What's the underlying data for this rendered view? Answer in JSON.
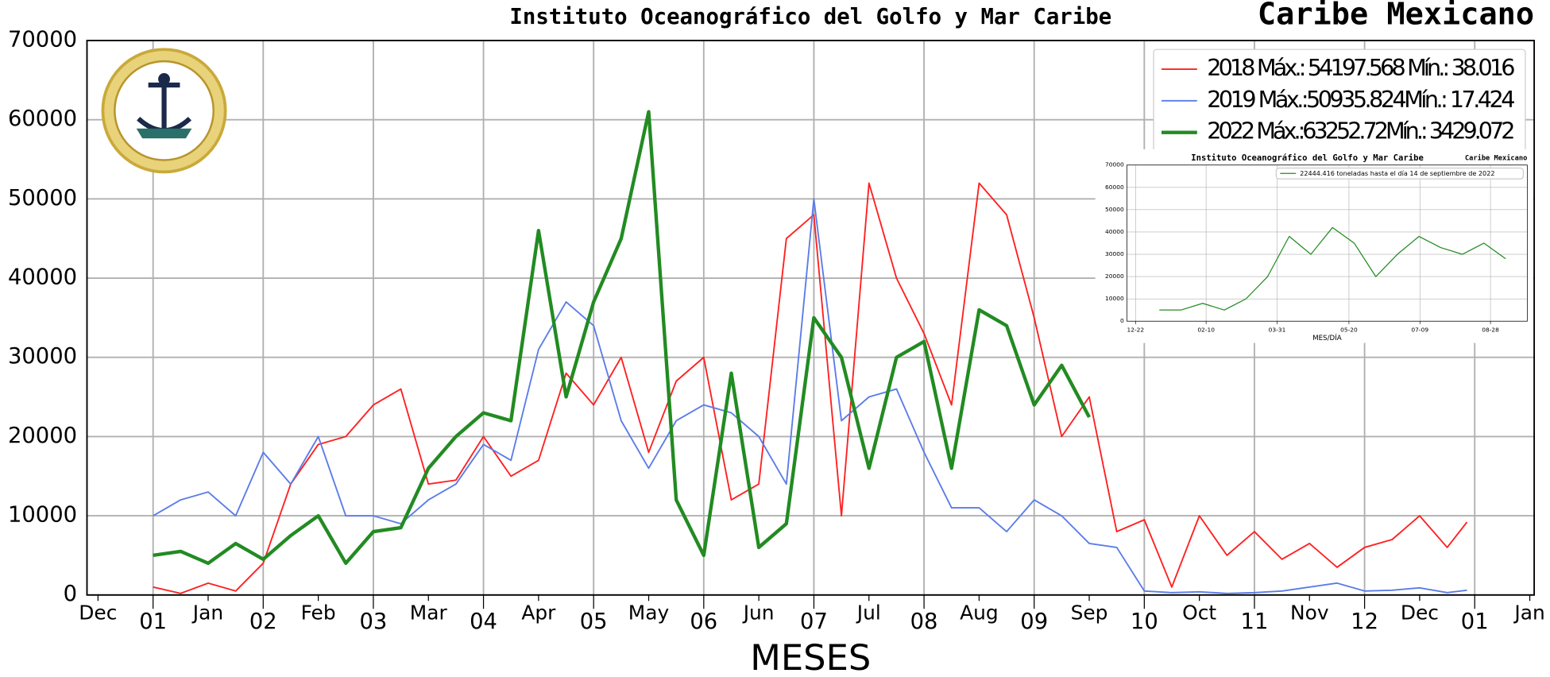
{
  "chart_data": [
    {
      "type": "line",
      "title": "Instituto Oceanográfico del Golfo y Mar Caribe",
      "subtitle": "Caribe Mexicano",
      "x_label": "MESES",
      "xlim": [
        0.4,
        13.54
      ],
      "ylim": [
        0,
        70000
      ],
      "yticks": [
        0,
        10000,
        20000,
        30000,
        40000,
        50000,
        60000,
        70000
      ],
      "xticks": [
        {
          "value": 1,
          "label": "01"
        },
        {
          "value": 2,
          "label": "02"
        },
        {
          "value": 3,
          "label": "03"
        },
        {
          "value": 4,
          "label": "04"
        },
        {
          "value": 5,
          "label": "05"
        },
        {
          "value": 6,
          "label": "06"
        },
        {
          "value": 7,
          "label": "07"
        },
        {
          "value": 8,
          "label": "08"
        },
        {
          "value": 9,
          "label": "09"
        },
        {
          "value": 10,
          "label": "10"
        },
        {
          "value": 11,
          "label": "11"
        },
        {
          "value": 12,
          "label": "12"
        },
        {
          "value": 13,
          "label": "01"
        }
      ],
      "xticks_minor": [
        {
          "value": 0.5,
          "label": "Dec"
        },
        {
          "value": 1.5,
          "label": "Jan"
        },
        {
          "value": 2.5,
          "label": "Feb"
        },
        {
          "value": 3.5,
          "label": "Mar"
        },
        {
          "value": 4.5,
          "label": "Apr"
        },
        {
          "value": 5.5,
          "label": "May"
        },
        {
          "value": 6.5,
          "label": "Jun"
        },
        {
          "value": 7.5,
          "label": "Jul"
        },
        {
          "value": 8.5,
          "label": "Aug"
        },
        {
          "value": 9.5,
          "label": "Sep"
        },
        {
          "value": 10.5,
          "label": "Oct"
        },
        {
          "value": 11.5,
          "label": "Nov"
        },
        {
          "value": 12.5,
          "label": "Dec"
        },
        {
          "value": 13.5,
          "label": "Jan"
        }
      ],
      "grid": true,
      "legend": "upper right",
      "x": [
        1,
        1.25,
        1.5,
        1.75,
        2,
        2.25,
        2.5,
        2.75,
        3,
        3.25,
        3.5,
        3.75,
        4,
        4.25,
        4.5,
        4.75,
        5,
        5.25,
        5.5,
        5.75,
        6,
        6.25,
        6.5,
        6.75,
        7,
        7.25,
        7.5,
        7.75,
        8,
        8.25,
        8.5,
        8.75,
        9,
        9.25,
        9.5,
        9.75,
        10,
        10.25,
        10.5,
        10.75,
        11,
        11.25,
        11.5,
        11.75,
        12,
        12.25,
        12.5,
        12.75,
        12.93
      ],
      "series": [
        {
          "name": "2018 Máx.: 54197.568 Mín.: 38.016",
          "color": "#ff2020",
          "linewidth": 1.5,
          "values": [
            1000,
            200,
            1500,
            500,
            4000,
            14000,
            19000,
            20000,
            24000,
            26000,
            14000,
            14500,
            20000,
            15000,
            17000,
            28000,
            24000,
            30000,
            18000,
            27000,
            30000,
            12000,
            14000,
            45000,
            48000,
            10000,
            52000,
            40000,
            33000,
            24000,
            52000,
            48000,
            35000,
            20000,
            25000,
            8000,
            9500,
            1000,
            10000,
            5000,
            8000,
            4500,
            6500,
            3500,
            6000,
            7000,
            10000,
            6000,
            9200
          ]
        },
        {
          "name": "2019 Máx.:50935.824Mín.: 17.424",
          "color": "#5b7ce8",
          "linewidth": 1.5,
          "values": [
            10000,
            12000,
            13000,
            10000,
            18000,
            14000,
            20000,
            10000,
            10000,
            9000,
            12000,
            14000,
            19000,
            17000,
            31000,
            37000,
            34000,
            22000,
            16000,
            22000,
            24000,
            23000,
            20000,
            14000,
            50000,
            22000,
            25000,
            26000,
            18000,
            11000,
            11000,
            8000,
            12000,
            10000,
            6500,
            6000,
            500,
            300,
            400,
            200,
            300,
            500,
            1000,
            1500,
            500,
            600,
            900,
            300,
            600
          ]
        },
        {
          "name": "2022 Máx.:63252.72Mín.: 3429.072",
          "color": "#228b22",
          "linewidth": 3.5,
          "values": [
            5000,
            5500,
            4000,
            6500,
            4500,
            7500,
            10000,
            4000,
            8000,
            8500,
            16000,
            20000,
            23000,
            22000,
            46000,
            25000,
            37000,
            45000,
            61000,
            12000,
            5000,
            28000,
            6000,
            9000,
            35000,
            30000,
            16000,
            30000,
            32000,
            16000,
            36000,
            34000,
            24000,
            29000,
            22444.416,
            null,
            null,
            null,
            null,
            null,
            null,
            null,
            null,
            null,
            null,
            null,
            null,
            null,
            null
          ]
        }
      ]
    },
    {
      "type": "line",
      "title": "Instituto Oceanográfico del Golfo y Mar Caribe",
      "subtitle": "Caribe Mexicano",
      "x_label": "MES/DÍA",
      "xlim": [
        0.5,
        9.75
      ],
      "ylim": [
        0,
        70000
      ],
      "yticks": [
        0,
        10000,
        20000,
        30000,
        40000,
        50000,
        60000,
        70000
      ],
      "xticks": [
        {
          "value": 0.7,
          "label": "12-22"
        },
        {
          "value": 2.33,
          "label": "02-10"
        },
        {
          "value": 3.97,
          "label": "03-31"
        },
        {
          "value": 5.63,
          "label": "05-20"
        },
        {
          "value": 7.27,
          "label": "07-09"
        },
        {
          "value": 8.9,
          "label": "08-28"
        }
      ],
      "grid": true,
      "legend": "upper right",
      "x": [
        1.25,
        1.75,
        2.25,
        2.75,
        3.25,
        3.75,
        4.25,
        4.75,
        5.25,
        5.75,
        6.25,
        6.75,
        7.25,
        7.75,
        8.25,
        8.75,
        9.25
      ],
      "series": [
        {
          "name": "22444.416 toneladas hasta el día 14 de septiembre de 2022",
          "color": "#228b22",
          "linewidth": 1,
          "values": [
            5000,
            5000,
            8000,
            5000,
            10000,
            20000,
            38000,
            30000,
            42000,
            35000,
            20000,
            30000,
            38000,
            33000,
            30000,
            35000,
            28000
          ]
        }
      ]
    }
  ]
}
